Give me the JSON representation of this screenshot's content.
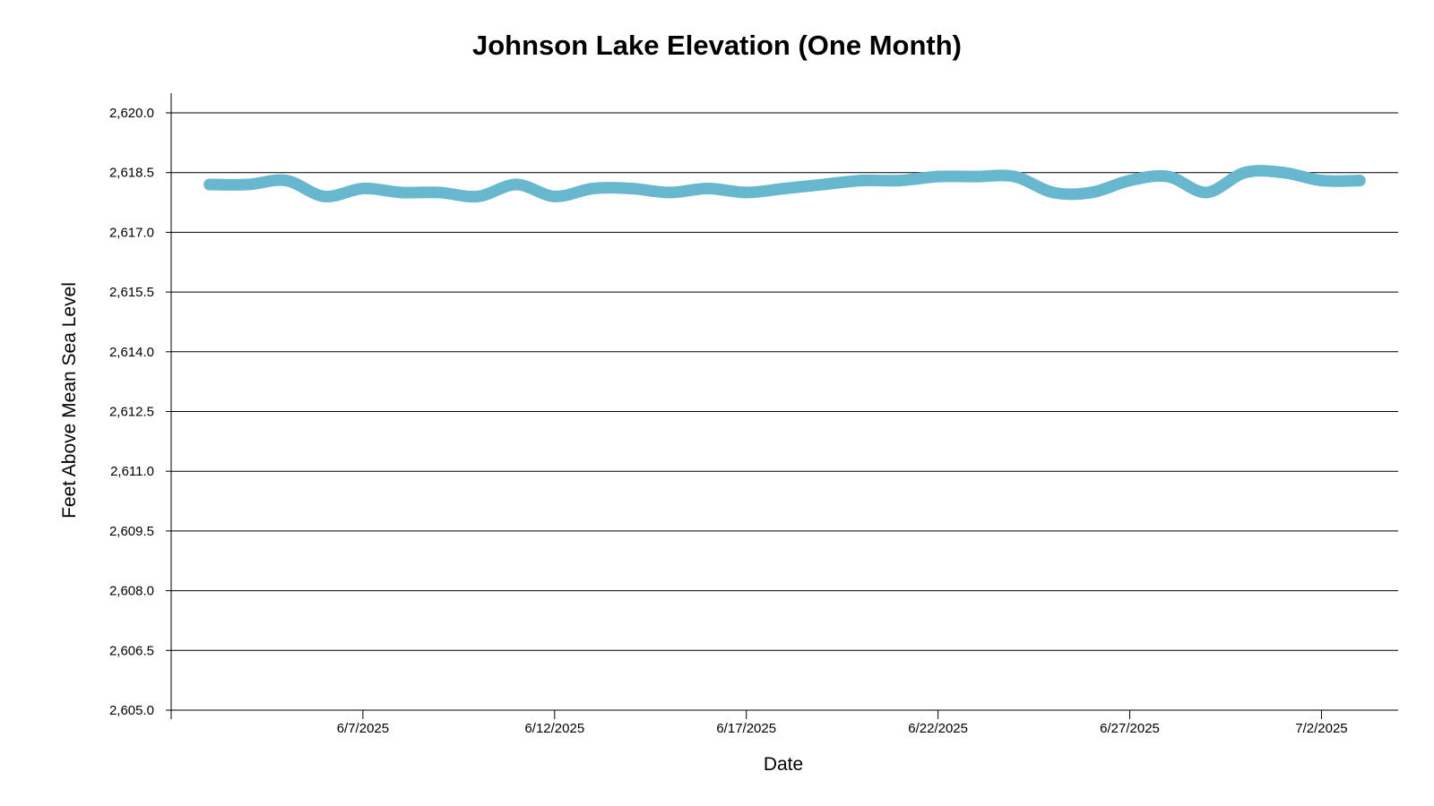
{
  "colors": {
    "series": "#67b7cf",
    "grid": "#000000",
    "axis": "#000000",
    "background": "#ffffff"
  },
  "chart_data": {
    "type": "line",
    "title": "Johnson Lake Elevation (One Month)",
    "xlabel": "Date",
    "ylabel": "Feet Above Mean Sea Level",
    "ylim": [
      2605.0,
      2620.0
    ],
    "xlim": [
      "2025-06-02",
      "2025-07-04"
    ],
    "yticks": [
      "2,605.0",
      "2,606.5",
      "2,608.0",
      "2,609.5",
      "2,611.0",
      "2,612.5",
      "2,614.0",
      "2,615.5",
      "2,617.0",
      "2,618.5",
      "2,620.0"
    ],
    "xticks": [
      {
        "label": "6/7/2025",
        "date": "2025-06-07"
      },
      {
        "label": "6/12/2025",
        "date": "2025-06-12"
      },
      {
        "label": "6/17/2025",
        "date": "2025-06-17"
      },
      {
        "label": "6/22/2025",
        "date": "2025-06-22"
      },
      {
        "label": "6/27/2025",
        "date": "2025-06-27"
      },
      {
        "label": "7/2/2025",
        "date": "2025-07-02"
      }
    ],
    "grid": "horizontal",
    "series": [
      {
        "points": [
          {
            "x": "2025-06-03",
            "y": 2618.2
          },
          {
            "x": "2025-06-04",
            "y": 2618.2
          },
          {
            "x": "2025-06-05",
            "y": 2618.3
          },
          {
            "x": "2025-06-06",
            "y": 2617.9
          },
          {
            "x": "2025-06-07",
            "y": 2618.1
          },
          {
            "x": "2025-06-08",
            "y": 2618.0
          },
          {
            "x": "2025-06-09",
            "y": 2618.0
          },
          {
            "x": "2025-06-10",
            "y": 2617.9
          },
          {
            "x": "2025-06-11",
            "y": 2618.2
          },
          {
            "x": "2025-06-12",
            "y": 2617.9
          },
          {
            "x": "2025-06-13",
            "y": 2618.1
          },
          {
            "x": "2025-06-14",
            "y": 2618.1
          },
          {
            "x": "2025-06-15",
            "y": 2618.0
          },
          {
            "x": "2025-06-16",
            "y": 2618.1
          },
          {
            "x": "2025-06-17",
            "y": 2618.0
          },
          {
            "x": "2025-06-18",
            "y": 2618.1
          },
          {
            "x": "2025-06-19",
            "y": 2618.2
          },
          {
            "x": "2025-06-20",
            "y": 2618.3
          },
          {
            "x": "2025-06-21",
            "y": 2618.3
          },
          {
            "x": "2025-06-22",
            "y": 2618.4
          },
          {
            "x": "2025-06-23",
            "y": 2618.4
          },
          {
            "x": "2025-06-24",
            "y": 2618.4
          },
          {
            "x": "2025-06-25",
            "y": 2618.0
          },
          {
            "x": "2025-06-26",
            "y": 2618.0
          },
          {
            "x": "2025-06-27",
            "y": 2618.3
          },
          {
            "x": "2025-06-28",
            "y": 2618.4
          },
          {
            "x": "2025-06-29",
            "y": 2618.0
          },
          {
            "x": "2025-06-30",
            "y": 2618.5
          },
          {
            "x": "2025-07-01",
            "y": 2618.5
          },
          {
            "x": "2025-07-02",
            "y": 2618.3
          },
          {
            "x": "2025-07-03",
            "y": 2618.3
          }
        ]
      }
    ]
  }
}
